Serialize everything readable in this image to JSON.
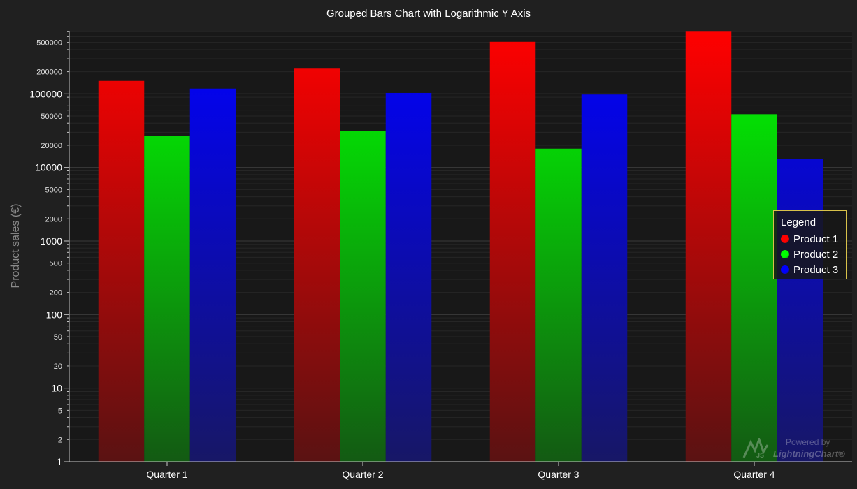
{
  "chart_data": {
    "type": "bar",
    "title": "Grouped Bars Chart with Logarithmic Y Axis",
    "xlabel": "",
    "ylabel": "Product sales (€)",
    "y_scale": "log",
    "ylim": [
      1,
      720000
    ],
    "grid": true,
    "legend_position": "right",
    "categories": [
      "Quarter 1",
      "Quarter 2",
      "Quarter 3",
      "Quarter 4"
    ],
    "series": [
      {
        "name": "Product 1",
        "color": "#ff0000",
        "values": [
          150000,
          220000,
          510000,
          700000
        ]
      },
      {
        "name": "Product 2",
        "color": "#00ff00",
        "values": [
          27000,
          31000,
          18000,
          53000
        ]
      },
      {
        "name": "Product 3",
        "color": "#0000ff",
        "values": [
          118000,
          103000,
          98000,
          13000
        ]
      }
    ],
    "y_major_ticks": [
      {
        "value": 1,
        "label": "1"
      },
      {
        "value": 10,
        "label": "10"
      },
      {
        "value": 100,
        "label": "100"
      },
      {
        "value": 1000,
        "label": "1000"
      },
      {
        "value": 10000,
        "label": "10000"
      },
      {
        "value": 100000,
        "label": "100000"
      }
    ],
    "y_minor_ticks": [
      {
        "value": 2,
        "label": "2"
      },
      {
        "value": 5,
        "label": "5"
      },
      {
        "value": 20,
        "label": "20"
      },
      {
        "value": 50,
        "label": "50"
      },
      {
        "value": 200,
        "label": "200"
      },
      {
        "value": 500,
        "label": "500"
      },
      {
        "value": 2000,
        "label": "2000"
      },
      {
        "value": 5000,
        "label": "5000"
      },
      {
        "value": 20000,
        "label": "20000"
      },
      {
        "value": 50000,
        "label": "50000"
      },
      {
        "value": 200000,
        "label": "200000"
      },
      {
        "value": 500000,
        "label": "500000"
      }
    ]
  },
  "legend": {
    "title": "Legend"
  },
  "watermark": {
    "powered": "Powered by",
    "brand": "LightningChart®",
    "icon": "lightningchart-logo-icon"
  },
  "colors": {
    "background": "#202020",
    "plot_background": "#181818",
    "grid": "#3a3a3a",
    "axis": "#c8c8c8"
  }
}
